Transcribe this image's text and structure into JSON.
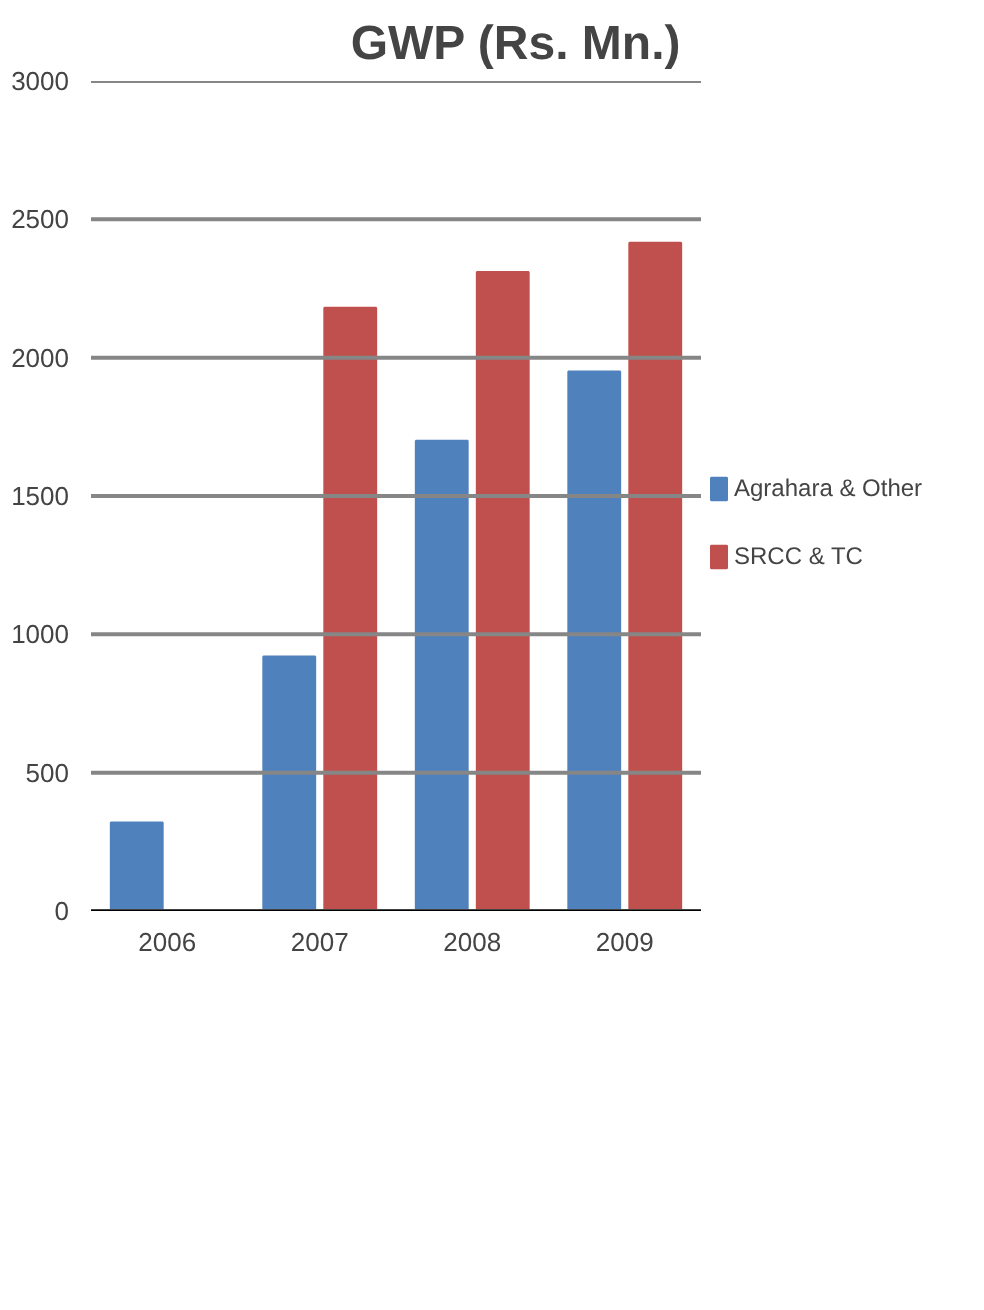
{
  "chart_data": {
    "type": "bar",
    "title": "GWP (Rs. Mn.)",
    "categories": [
      "2006",
      "2007",
      "2008",
      "2009"
    ],
    "series": [
      {
        "name": "Agrahara & Other",
        "color": "#4f81bd",
        "values": [
          320,
          920,
          1700,
          1950
        ]
      },
      {
        "name": "SRCC & TC",
        "color": "#c0504d",
        "values": [
          null,
          2180,
          2310,
          2415
        ]
      }
    ],
    "ylim": [
      0,
      3000
    ],
    "yticks": [
      0,
      500,
      1000,
      1500,
      2000,
      2500,
      3000
    ],
    "grid": "y",
    "legend": "right"
  }
}
